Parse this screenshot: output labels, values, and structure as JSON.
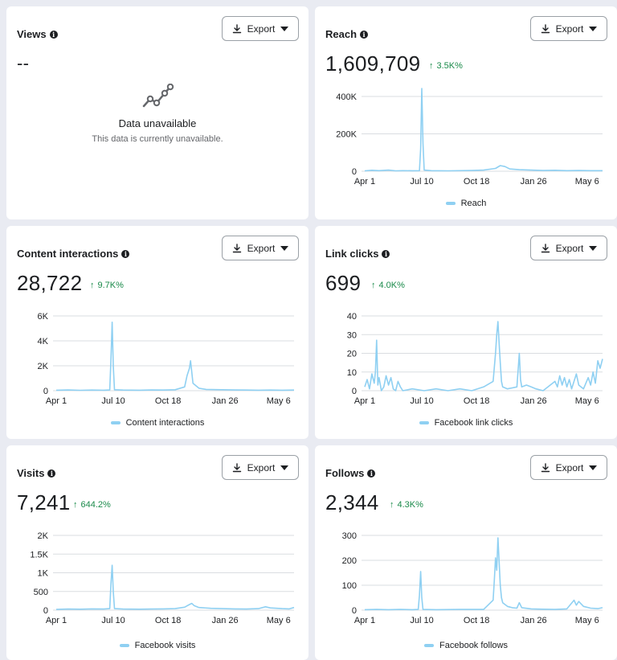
{
  "colors": {
    "accent": "#8fd0f2",
    "positive": "#1a8a4a",
    "background": "#e9ebf2"
  },
  "export_label": "Export",
  "cards": {
    "views": {
      "title": "Views",
      "value": "--",
      "unavailable_title": "Data unavailable",
      "unavailable_subtitle": "This data is currently unavailable.",
      "icon": "line-chart-icon"
    },
    "reach": {
      "title": "Reach",
      "value": "1,609,709",
      "delta": "3.5K%",
      "legend": "Reach"
    },
    "content": {
      "title": "Content interactions",
      "value": "28,722",
      "delta": "9.7K%",
      "legend": "Content interactions"
    },
    "link": {
      "title": "Link clicks",
      "value": "699",
      "delta": "4.0K%",
      "legend": "Facebook link clicks"
    },
    "visits": {
      "title": "Visits",
      "value": "7,241",
      "delta": "644.2%",
      "legend": "Facebook visits"
    },
    "follows": {
      "title": "Follows",
      "value": "2,344",
      "delta": "4.3K%",
      "legend": "Facebook follows"
    }
  },
  "chart_data": [
    {
      "id": "reach",
      "type": "line",
      "x_ticks": [
        "Apr 1",
        "Jul 10",
        "Oct 18",
        "Jan 26",
        "May 6"
      ],
      "y_ticks": [
        "0",
        "200K",
        "400K"
      ],
      "ylim": [
        0,
        500000
      ],
      "series": [
        {
          "name": "Reach",
          "points": [
            [
              0,
              2000
            ],
            [
              0.03,
              5000
            ],
            [
              0.06,
              3000
            ],
            [
              0.1,
              6000
            ],
            [
              0.13,
              2000
            ],
            [
              0.16,
              3000
            ],
            [
              0.2,
              2500
            ],
            [
              0.23,
              3000
            ],
            [
              0.235,
              120000
            ],
            [
              0.24,
              480000
            ],
            [
              0.245,
              150000
            ],
            [
              0.25,
              6000
            ],
            [
              0.28,
              3000
            ],
            [
              0.35,
              2000
            ],
            [
              0.45,
              4000
            ],
            [
              0.5,
              6000
            ],
            [
              0.55,
              15000
            ],
            [
              0.57,
              30000
            ],
            [
              0.59,
              25000
            ],
            [
              0.61,
              12000
            ],
            [
              0.65,
              8000
            ],
            [
              0.7,
              6000
            ],
            [
              0.75,
              4000
            ],
            [
              0.8,
              5000
            ],
            [
              0.85,
              3000
            ],
            [
              0.9,
              4000
            ],
            [
              0.95,
              3000
            ],
            [
              1.0,
              3000
            ]
          ]
        }
      ]
    },
    {
      "id": "content",
      "type": "line",
      "x_ticks": [
        "Apr 1",
        "Jul 10",
        "Oct 18",
        "Jan 26",
        "May 6"
      ],
      "y_ticks": [
        "0",
        "2K",
        "4K",
        "6K"
      ],
      "ylim": [
        0,
        6000
      ],
      "series": [
        {
          "name": "Content interactions",
          "points": [
            [
              0,
              40
            ],
            [
              0.05,
              60
            ],
            [
              0.1,
              30
            ],
            [
              0.15,
              50
            ],
            [
              0.2,
              40
            ],
            [
              0.225,
              60
            ],
            [
              0.23,
              2500
            ],
            [
              0.235,
              5500
            ],
            [
              0.24,
              2000
            ],
            [
              0.245,
              80
            ],
            [
              0.28,
              50
            ],
            [
              0.35,
              40
            ],
            [
              0.4,
              60
            ],
            [
              0.45,
              50
            ],
            [
              0.5,
              80
            ],
            [
              0.54,
              300
            ],
            [
              0.55,
              1200
            ],
            [
              0.56,
              1800
            ],
            [
              0.565,
              2400
            ],
            [
              0.57,
              1500
            ],
            [
              0.575,
              600
            ],
            [
              0.6,
              200
            ],
            [
              0.63,
              100
            ],
            [
              0.7,
              80
            ],
            [
              0.75,
              60
            ],
            [
              0.8,
              50
            ],
            [
              0.85,
              40
            ],
            [
              0.9,
              50
            ],
            [
              0.95,
              40
            ],
            [
              1.0,
              50
            ]
          ]
        }
      ]
    },
    {
      "id": "link",
      "type": "line",
      "x_ticks": [
        "Apr 1",
        "Jul 10",
        "Oct 18",
        "Jan 26",
        "May 6"
      ],
      "y_ticks": [
        "0",
        "10",
        "20",
        "30",
        "40"
      ],
      "ylim": [
        0,
        40
      ],
      "series": [
        {
          "name": "Facebook link clicks",
          "points": [
            [
              0,
              2
            ],
            [
              0.01,
              6
            ],
            [
              0.02,
              1
            ],
            [
              0.03,
              9
            ],
            [
              0.04,
              4
            ],
            [
              0.045,
              10
            ],
            [
              0.05,
              27
            ],
            [
              0.055,
              3
            ],
            [
              0.06,
              7
            ],
            [
              0.07,
              0
            ],
            [
              0.08,
              2
            ],
            [
              0.09,
              8
            ],
            [
              0.1,
              3
            ],
            [
              0.11,
              7
            ],
            [
              0.12,
              1
            ],
            [
              0.13,
              0
            ],
            [
              0.14,
              5
            ],
            [
              0.15,
              2
            ],
            [
              0.16,
              0
            ],
            [
              0.2,
              1
            ],
            [
              0.25,
              0
            ],
            [
              0.3,
              1
            ],
            [
              0.35,
              0
            ],
            [
              0.4,
              1
            ],
            [
              0.45,
              0
            ],
            [
              0.5,
              2
            ],
            [
              0.54,
              5
            ],
            [
              0.55,
              20
            ],
            [
              0.555,
              30
            ],
            [
              0.56,
              37
            ],
            [
              0.565,
              26
            ],
            [
              0.57,
              15
            ],
            [
              0.575,
              5
            ],
            [
              0.58,
              2
            ],
            [
              0.6,
              1
            ],
            [
              0.64,
              2
            ],
            [
              0.65,
              20
            ],
            [
              0.655,
              6
            ],
            [
              0.66,
              2
            ],
            [
              0.68,
              3
            ],
            [
              0.7,
              2
            ],
            [
              0.72,
              1
            ],
            [
              0.75,
              0
            ],
            [
              0.8,
              5
            ],
            [
              0.81,
              2
            ],
            [
              0.82,
              8
            ],
            [
              0.83,
              3
            ],
            [
              0.84,
              7
            ],
            [
              0.85,
              2
            ],
            [
              0.86,
              6
            ],
            [
              0.87,
              1
            ],
            [
              0.88,
              5
            ],
            [
              0.89,
              9
            ],
            [
              0.9,
              3
            ],
            [
              0.92,
              1
            ],
            [
              0.94,
              7
            ],
            [
              0.95,
              3
            ],
            [
              0.96,
              10
            ],
            [
              0.97,
              4
            ],
            [
              0.98,
              16
            ],
            [
              0.99,
              12
            ],
            [
              1.0,
              17
            ]
          ]
        }
      ]
    },
    {
      "id": "visits",
      "type": "line",
      "x_ticks": [
        "Apr 1",
        "Jul 10",
        "Oct 18",
        "Jan 26",
        "May 6"
      ],
      "y_ticks": [
        "0",
        "500",
        "1K",
        "1.5K",
        "2K"
      ],
      "ylim": [
        0,
        2000
      ],
      "series": [
        {
          "name": "Facebook visits",
          "points": [
            [
              0,
              20
            ],
            [
              0.05,
              30
            ],
            [
              0.1,
              25
            ],
            [
              0.15,
              35
            ],
            [
              0.2,
              30
            ],
            [
              0.225,
              40
            ],
            [
              0.23,
              700
            ],
            [
              0.235,
              1200
            ],
            [
              0.24,
              500
            ],
            [
              0.245,
              40
            ],
            [
              0.28,
              30
            ],
            [
              0.35,
              25
            ],
            [
              0.4,
              30
            ],
            [
              0.45,
              35
            ],
            [
              0.5,
              40
            ],
            [
              0.54,
              80
            ],
            [
              0.56,
              150
            ],
            [
              0.57,
              180
            ],
            [
              0.58,
              120
            ],
            [
              0.6,
              70
            ],
            [
              0.65,
              50
            ],
            [
              0.7,
              40
            ],
            [
              0.75,
              35
            ],
            [
              0.8,
              30
            ],
            [
              0.85,
              40
            ],
            [
              0.88,
              90
            ],
            [
              0.9,
              60
            ],
            [
              0.95,
              40
            ],
            [
              0.98,
              35
            ],
            [
              1.0,
              70
            ]
          ]
        }
      ]
    },
    {
      "id": "follows",
      "type": "line",
      "x_ticks": [
        "Apr 1",
        "Jul 10",
        "Oct 18",
        "Jan 26",
        "May 6"
      ],
      "y_ticks": [
        "0",
        "100",
        "200",
        "300"
      ],
      "ylim": [
        0,
        300
      ],
      "series": [
        {
          "name": "Facebook follows",
          "points": [
            [
              0,
              2
            ],
            [
              0.05,
              3
            ],
            [
              0.1,
              2
            ],
            [
              0.15,
              3
            ],
            [
              0.2,
              2
            ],
            [
              0.225,
              3
            ],
            [
              0.23,
              60
            ],
            [
              0.235,
              155
            ],
            [
              0.24,
              50
            ],
            [
              0.245,
              3
            ],
            [
              0.3,
              2
            ],
            [
              0.4,
              3
            ],
            [
              0.5,
              3
            ],
            [
              0.54,
              40
            ],
            [
              0.545,
              120
            ],
            [
              0.55,
              210
            ],
            [
              0.555,
              160
            ],
            [
              0.56,
              290
            ],
            [
              0.565,
              200
            ],
            [
              0.57,
              100
            ],
            [
              0.575,
              50
            ],
            [
              0.58,
              30
            ],
            [
              0.6,
              15
            ],
            [
              0.62,
              10
            ],
            [
              0.64,
              8
            ],
            [
              0.65,
              30
            ],
            [
              0.66,
              10
            ],
            [
              0.7,
              5
            ],
            [
              0.75,
              4
            ],
            [
              0.8,
              3
            ],
            [
              0.85,
              5
            ],
            [
              0.88,
              40
            ],
            [
              0.89,
              20
            ],
            [
              0.9,
              35
            ],
            [
              0.92,
              15
            ],
            [
              0.95,
              8
            ],
            [
              0.98,
              6
            ],
            [
              1.0,
              10
            ]
          ]
        }
      ]
    }
  ]
}
